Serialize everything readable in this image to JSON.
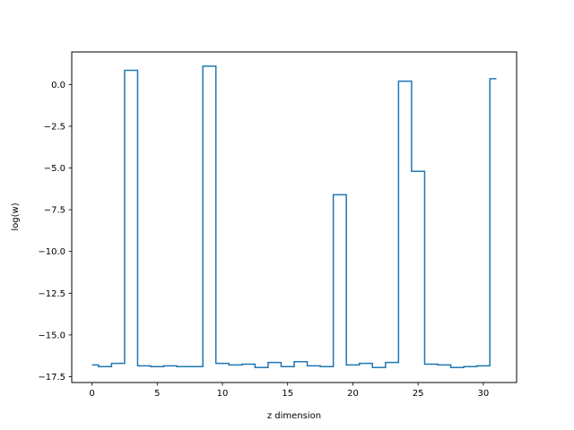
{
  "chart_data": {
    "type": "line",
    "drawstyle": "steps-mid",
    "title": "",
    "xlabel": "z dimension",
    "ylabel": "log(w)",
    "xlim": [
      -1.55,
      32.55
    ],
    "ylim": [
      -17.85,
      1.95
    ],
    "xticks": [
      0,
      5,
      10,
      15,
      20,
      25,
      30
    ],
    "xtick_labels": [
      "0",
      "5",
      "10",
      "15",
      "20",
      "25",
      "30"
    ],
    "yticks": [
      0.0,
      -2.5,
      -5.0,
      -7.5,
      -10.0,
      -12.5,
      -15.0,
      -17.5
    ],
    "ytick_labels": [
      "0.0",
      "−2.5",
      "−5.0",
      "−7.5",
      "−10.0",
      "−12.5",
      "−15.0",
      "−17.5"
    ],
    "grid": false,
    "legend": "none",
    "line_color": "#1f77b4",
    "series": [
      {
        "x": [
          0,
          1,
          2,
          3,
          4,
          5,
          6,
          7,
          8,
          9,
          10,
          11,
          12,
          13,
          14,
          15,
          16,
          17,
          18,
          19,
          20,
          21,
          22,
          23,
          24,
          25,
          26,
          27,
          28,
          29,
          30,
          31
        ],
        "values": [
          -16.8,
          -16.9,
          -16.7,
          0.85,
          -16.85,
          -16.9,
          -16.85,
          -16.9,
          -16.9,
          1.1,
          -16.7,
          -16.8,
          -16.75,
          -16.95,
          -16.65,
          -16.9,
          -16.6,
          -16.85,
          -16.9,
          -6.6,
          -16.8,
          -16.7,
          -16.95,
          -16.65,
          0.2,
          -5.2,
          -16.75,
          -16.8,
          -16.95,
          -16.9,
          -16.85,
          0.35
        ]
      }
    ]
  }
}
